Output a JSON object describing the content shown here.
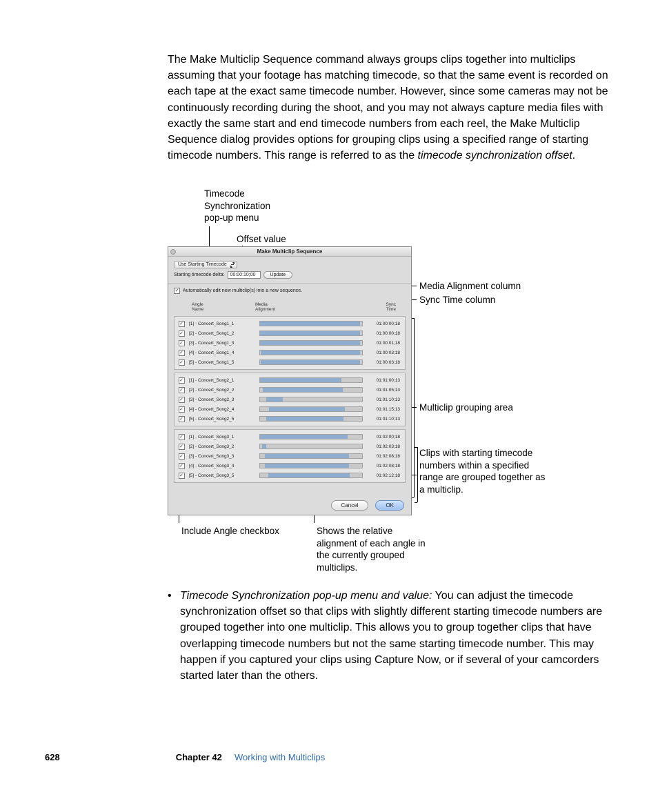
{
  "body_paragraph": "The Make Multiclip Sequence command always groups clips together into multiclips assuming that your footage has matching timecode, so that the same event is recorded on each tape at the exact same timecode number. However, since some cameras may not be continuously recording during the shoot, and you may not always capture media files with exactly the same start and end timecode numbers from each reel, the Make Multiclip Sequence dialog provides options for grouping clips using a specified range of starting timecode numbers. This range is referred to as the ",
  "body_paragraph_italic": "timecode synchronization offset",
  "body_paragraph_tail": ".",
  "callouts": {
    "tc_sync_popup": "Timecode\nSynchronization\npop-up menu",
    "offset_value": "Offset value",
    "media_align_col": "Media Alignment column",
    "sync_time_col": "Sync Time column",
    "grouping_area": "Multiclip grouping area",
    "grouped_note": "Clips with starting timecode numbers within a specified range are grouped together as a multiclip.",
    "include_angle": "Include Angle checkbox",
    "shows_relative": "Shows the relative alignment of each angle in the currently grouped multiclips."
  },
  "dialog": {
    "title": "Make Multiclip Sequence",
    "popup_label": "Use Starting Timecode",
    "delta_label": "Starting timecode delta:",
    "delta_value": "00:00:10;00",
    "update_btn": "Update",
    "auto_edit": "Automatically edit new multiclip(s) into a new sequence.",
    "headers": {
      "angle": "Angle\nName",
      "media": "Media\nAlignment",
      "sync": "Sync\nTime"
    },
    "groups": [
      {
        "rows": [
          {
            "name": "[1] - Concert_Song1_1",
            "tc": "01:00:00;18",
            "seg_l": 0,
            "seg_w": 98
          },
          {
            "name": "[2] - Concert_Song1_2",
            "tc": "01:00:00;18",
            "seg_l": 0,
            "seg_w": 98
          },
          {
            "name": "[3] - Concert_Song1_3",
            "tc": "01:00:01;18",
            "seg_l": 0,
            "seg_w": 98
          },
          {
            "name": "[4] - Concert_Song1_4",
            "tc": "01:00:03;18",
            "seg_l": 1,
            "seg_w": 97
          },
          {
            "name": "[5] - Concert_Song1_5",
            "tc": "01:00:03;18",
            "seg_l": 1,
            "seg_w": 97
          }
        ]
      },
      {
        "rows": [
          {
            "name": "[1] - Concert_Song2_1",
            "tc": "01:01:00;13",
            "seg_l": 0,
            "seg_w": 80
          },
          {
            "name": "[2] - Concert_Song2_2",
            "tc": "01:01:05;13",
            "seg_l": 3,
            "seg_w": 78
          },
          {
            "name": "[3] - Concert_Song2_3",
            "tc": "01:01:10;13",
            "seg_l": 6,
            "seg_w": 16
          },
          {
            "name": "[4] - Concert_Song2_4",
            "tc": "01:01:15;13",
            "seg_l": 9,
            "seg_w": 74
          },
          {
            "name": "[5] - Concert_Song2_5",
            "tc": "01:01:10;13",
            "seg_l": 6,
            "seg_w": 76
          }
        ]
      },
      {
        "rows": [
          {
            "name": "[1] - Concert_Song3_1",
            "tc": "01:02:00;18",
            "seg_l": 0,
            "seg_w": 86
          },
          {
            "name": "[2] - Concert_Song3_2",
            "tc": "01:02:03;18",
            "seg_l": 2,
            "seg_w": 4
          },
          {
            "name": "[3] - Concert_Song3_3",
            "tc": "01:02:08;18",
            "seg_l": 5,
            "seg_w": 82
          },
          {
            "name": "[4] - Concert_Song3_4",
            "tc": "01:02:08;18",
            "seg_l": 5,
            "seg_w": 82
          },
          {
            "name": "[5] - Concert_Song3_5",
            "tc": "01:02:12;18",
            "seg_l": 8,
            "seg_w": 80
          }
        ]
      }
    ],
    "cancel": "Cancel",
    "ok": "OK"
  },
  "bullet": {
    "lead_italic": "Timecode Synchronization pop-up menu and value:",
    "text": "  You can adjust the timecode synchronization offset so that clips with slightly different starting timecode numbers are grouped together into one multiclip. This allows you to group together clips that have overlapping timecode numbers but not the same starting timecode number. This may happen if you captured your clips using Capture Now, or if several of your camcorders started later than the others."
  },
  "footer": {
    "page": "628",
    "chapter_label": "Chapter 42",
    "chapter_title": "Working with Multiclips"
  },
  "colors": {
    "accent_blue": "#2e6bb3",
    "bar_fill": "#8faecf",
    "dialog_bg": "#dcdcdc"
  }
}
